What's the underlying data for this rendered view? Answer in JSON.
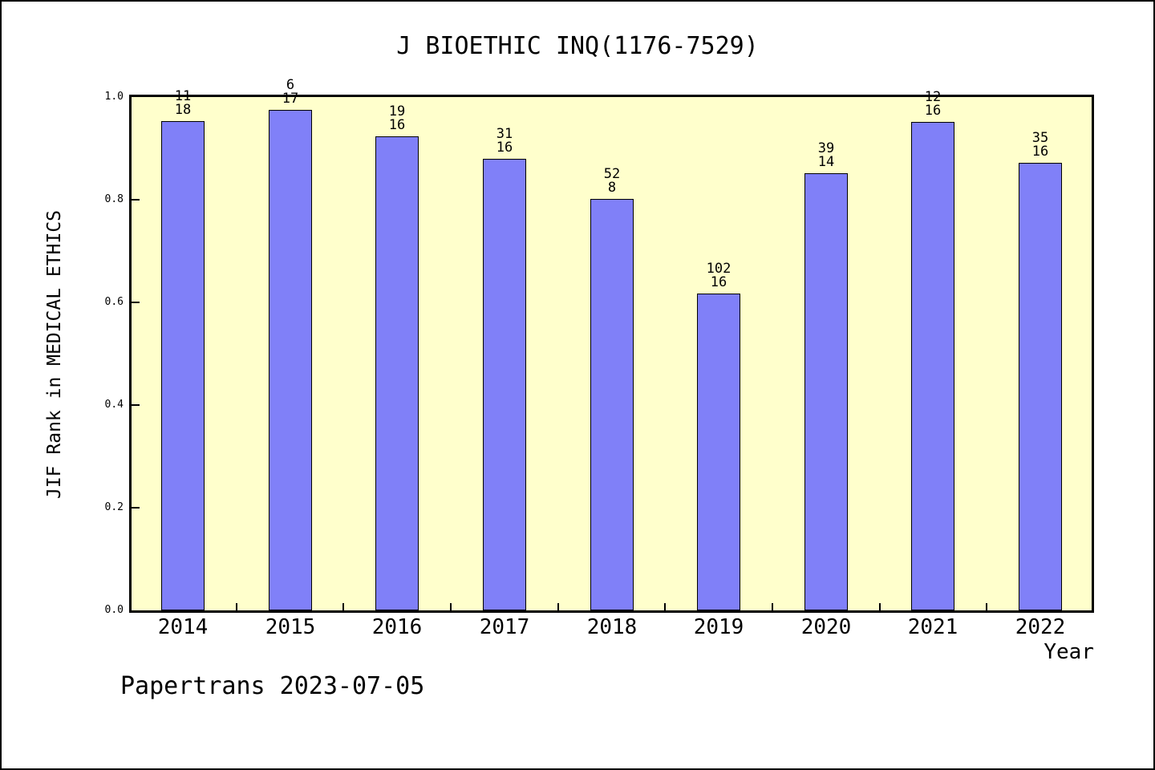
{
  "footer": "Papertrans 2023-07-05",
  "chart_data": {
    "type": "bar",
    "title": "J BIOETHIC INQ(1176-7529)",
    "xlabel": "Year",
    "ylabel": "JIF Rank in MEDICAL ETHICS",
    "categories": [
      "2014",
      "2015",
      "2016",
      "2017",
      "2018",
      "2019",
      "2020",
      "2021",
      "2022"
    ],
    "values": [
      0.953,
      0.975,
      0.924,
      0.879,
      0.802,
      0.617,
      0.852,
      0.952,
      0.872
    ],
    "bar_labels": [
      [
        "11",
        "18"
      ],
      [
        "6",
        "17"
      ],
      [
        "19",
        "16"
      ],
      [
        "31",
        "16"
      ],
      [
        "52",
        "8"
      ],
      [
        "102",
        "16"
      ],
      [
        "39",
        "14"
      ],
      [
        "12",
        "16"
      ],
      [
        "35",
        "16"
      ]
    ],
    "ylim": [
      0.0,
      1.0
    ],
    "yticks": [
      "0.0",
      "0.2",
      "0.4",
      "0.6",
      "0.8",
      "1.0"
    ],
    "grid": false,
    "legend": "none",
    "colors": {
      "bar_fill": "#8080F8",
      "bar_edge": "#000000",
      "plot_bg": "#FFFFCC",
      "text": "#000000",
      "frame": "#000000"
    }
  }
}
